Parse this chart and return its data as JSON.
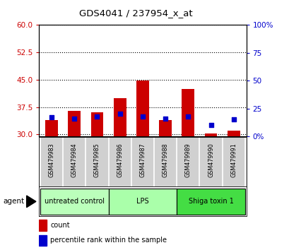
{
  "title": "GDS4041 / 237954_x_at",
  "samples": [
    "GSM479983",
    "GSM479984",
    "GSM479985",
    "GSM479986",
    "GSM479987",
    "GSM479988",
    "GSM479989",
    "GSM479990",
    "GSM479991"
  ],
  "count_values": [
    34.0,
    36.5,
    36.0,
    40.0,
    44.7,
    34.0,
    42.5,
    30.2,
    31.0
  ],
  "percentile_values": [
    17,
    16,
    18,
    20,
    18,
    16,
    18,
    10,
    15
  ],
  "bar_base": 29.5,
  "ylim_left": [
    29.5,
    60
  ],
  "ylim_right": [
    0,
    100
  ],
  "left_yticks": [
    30,
    37.5,
    45,
    52.5,
    60
  ],
  "right_yticks": [
    0,
    25,
    50,
    75,
    100
  ],
  "right_yticklabels": [
    "0%",
    "25",
    "50",
    "75",
    "100%"
  ],
  "groups": [
    {
      "label": "untreated control",
      "start": 0,
      "end": 3,
      "color": "#bbffbb"
    },
    {
      "label": "LPS",
      "start": 3,
      "end": 6,
      "color": "#aaffaa"
    },
    {
      "label": "Shiga toxin 1",
      "start": 6,
      "end": 9,
      "color": "#44dd44"
    }
  ],
  "bar_color": "#cc0000",
  "marker_color": "#0000cc",
  "bar_width": 0.55,
  "tick_area_color": "#d0d0d0",
  "agent_label": "agent",
  "legend_count_label": "count",
  "legend_percentile_label": "percentile rank within the sample",
  "left_tick_color": "#cc0000",
  "right_tick_color": "#0000cc"
}
